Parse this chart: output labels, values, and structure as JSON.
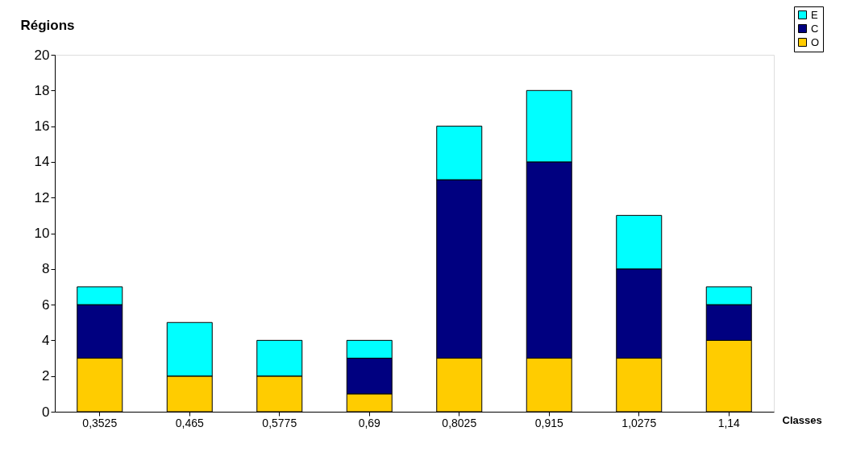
{
  "chart_data": {
    "type": "bar",
    "stacked": true,
    "ylabel": "Régions",
    "xlabel": "Classes",
    "categories": [
      "0,3525",
      "0,465",
      "0,5775",
      "0,69",
      "0,8025",
      "0,915",
      "1,0275",
      "1,14"
    ],
    "series": [
      {
        "name": "O",
        "color": "#ffcc00",
        "values": [
          3,
          2,
          2,
          1,
          3,
          3,
          3,
          4
        ]
      },
      {
        "name": "C",
        "color": "#000080",
        "values": [
          3,
          0,
          0,
          2,
          10,
          11,
          5,
          2
        ]
      },
      {
        "name": "E",
        "color": "#00ffff",
        "values": [
          1,
          3,
          2,
          1,
          3,
          4,
          3,
          1
        ]
      }
    ],
    "ylim": [
      0,
      20
    ],
    "yticks": [
      0,
      2,
      4,
      6,
      8,
      10,
      12,
      14,
      16,
      18,
      20
    ],
    "grid": false,
    "legend": "top right"
  }
}
